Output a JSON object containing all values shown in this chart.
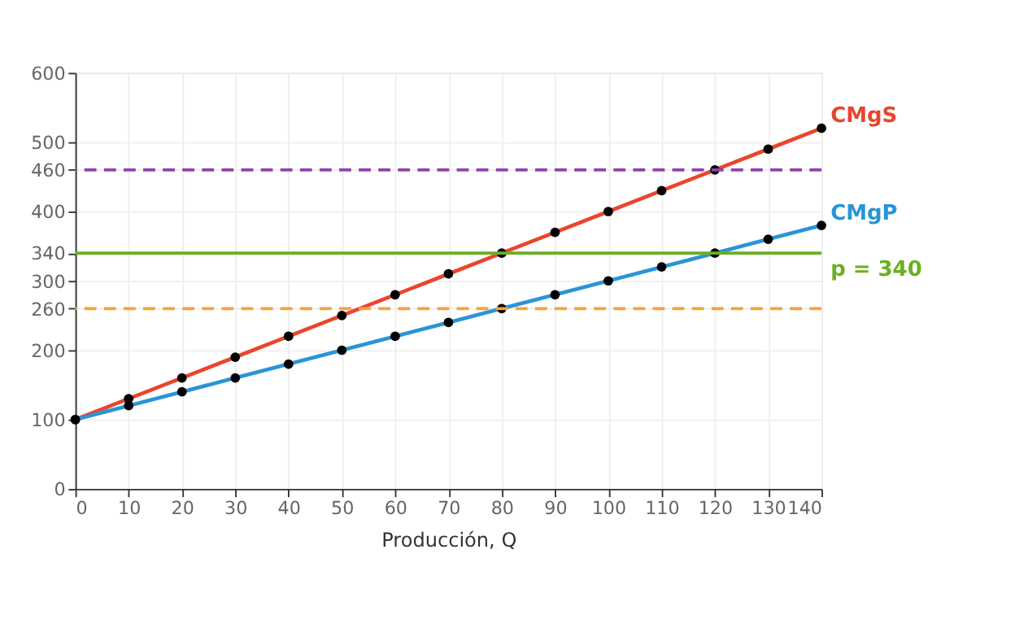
{
  "chart_data": {
    "type": "line",
    "xlabel": "Producción, Q",
    "x": [
      0,
      10,
      20,
      30,
      40,
      50,
      60,
      70,
      80,
      90,
      100,
      110,
      120,
      130,
      140
    ],
    "series": [
      {
        "name": "CMgS",
        "color": "#e8462e",
        "values": [
          100,
          130,
          160,
          190,
          220,
          250,
          280,
          310,
          340,
          370,
          400,
          430,
          460,
          490,
          520
        ]
      },
      {
        "name": "CMgP",
        "color": "#2a94d6",
        "values": [
          100,
          120,
          140,
          160,
          180,
          200,
          220,
          240,
          260,
          280,
          300,
          320,
          340,
          360,
          380
        ]
      }
    ],
    "xlim": [
      0,
      140
    ],
    "xticks": [
      0,
      10,
      20,
      30,
      40,
      50,
      60,
      70,
      80,
      90,
      100,
      110,
      120,
      130,
      140
    ],
    "ylim": [
      0,
      600
    ],
    "yticks": [
      0,
      100,
      200,
      260,
      300,
      340,
      400,
      460,
      500,
      600
    ],
    "ref_lines": [
      {
        "axis": "y",
        "value": 460,
        "color": "#8e44ad",
        "line_style": "dashed"
      },
      {
        "axis": "y",
        "value": 340,
        "label": "p = 340",
        "color": "#6ab023",
        "line_style": "solid"
      },
      {
        "axis": "y",
        "value": 260,
        "color": "#f5a33a",
        "line_style": "dashed"
      }
    ],
    "grid": true,
    "marker": "circle",
    "line_style": "solid"
  }
}
